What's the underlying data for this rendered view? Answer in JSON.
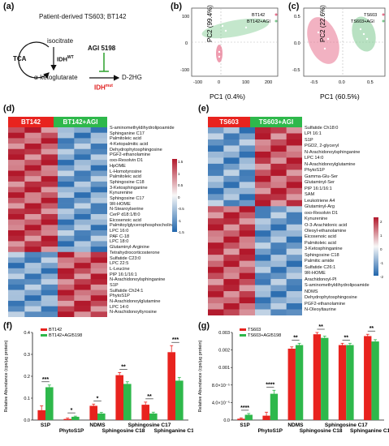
{
  "panel_letters": [
    "(a)",
    "(b)",
    "(c)",
    "(d)",
    "(e)",
    "(f)",
    "(g)"
  ],
  "panel_a": {
    "title": "Patient-derived TS603; BT142",
    "tca": "TCA",
    "isocitrate": "isocitrate",
    "idh_wt": "IDH",
    "idh_wt_sup": "WT",
    "inhibitor": "AGI 5198",
    "akg": "α-ketoglutarate",
    "product": "D-2HG",
    "idh_mut": "IDH",
    "idh_mut_sup": "mut",
    "colors": {
      "inhibitor": "#111111",
      "mutant": "#e02020",
      "inhibit_line": "#2ca02c"
    }
  },
  "panel_b": {
    "xlabel": "PC1 (0.4%)",
    "ylabel": "PC2 (99.4%)",
    "xticks": [
      "-100",
      "0",
      "100",
      "200"
    ],
    "yticks": [
      "-100",
      "0",
      "100"
    ],
    "legend": [
      "BT142",
      "BT142+AGI"
    ],
    "colors": [
      "#e8738f",
      "#7dc98f"
    ]
  },
  "panel_c": {
    "xlabel": "PC1 (60.5%)",
    "ylabel": "PC2 (22.6%)",
    "xticks": [
      "-0.5",
      "0.0",
      "0.5"
    ],
    "yticks": [
      "-0.5",
      "0.0",
      "0.5"
    ],
    "legend": [
      "TS603",
      "TS603+AGI"
    ],
    "colors": [
      "#e8738f",
      "#7dc98f"
    ]
  },
  "panel_d": {
    "groups": [
      "BT142",
      "BT142+AGI"
    ],
    "group_colors": [
      "#e8231e",
      "#2eb84b"
    ],
    "colorbar_ticks": [
      "1.5",
      "1",
      "0.5",
      "0",
      "-0.5",
      "-1",
      "-1.5"
    ],
    "metabolites": [
      "S-aminomethyldihydrolipoamide",
      "Sphinganine C17",
      "Palmitoleic acid",
      "4-Ketopalmitic acid",
      "Dehydrophytosphingosine",
      "PGF2-ethanolamine",
      "oxo-Resolvin D1",
      "HpOME",
      "L-Homotyrosine",
      "Palmitoleic acid",
      "Sphingosine C18",
      "3-Ketosphinganine",
      "Kynurenine",
      "Sphingosine C17",
      "9R-HOME",
      "N-Stearoylserine",
      "CerP d18:1/8:0",
      "Eicosenoic acid",
      "Palmitoylglycerophosphocholine",
      "LPC 16:0",
      "PAF C-18",
      "LPC 18:0",
      "Glutaminyl-Arginine",
      "Tetrahydrocorticosterone",
      "Sulfatide C23:0",
      "LPC 22:5",
      "L-Leucine",
      "PIP 16:1/16:1",
      "N-Arachidonoylsphinganine",
      "S1P",
      "Sulfatide Ch24:1",
      "PhytoS1P",
      "N-Arachidonoylglutamine",
      "LPC 14:0",
      "N-Arachidonoyltyrosine"
    ]
  },
  "panel_e": {
    "groups": [
      "TS603",
      "TS603+AGI"
    ],
    "group_colors": [
      "#e8231e",
      "#2eb84b"
    ],
    "colorbar_ticks": [
      "2",
      "1",
      "0",
      "-1",
      "-2"
    ],
    "metabolites": [
      "Sulfatide Ch18:0",
      "LPI 16:1",
      "S1P",
      "PGD2, 2-glyceryl",
      "N-Arachidonoylsphinganine",
      "LPC 14:0",
      "N-Arachidonoylglutamine",
      "PhytoS1P",
      "Gamma-Glu-Ser",
      "Glutaminyl-Ser",
      "PIP 16:1/16:1",
      "SAM",
      "Leukotriene A4",
      "Glutaminyl-Arg",
      "oxo-Resolvin D1",
      "Kynurenine",
      "O-3-Arachidonic acid",
      "Oleoyl-ethanolamine",
      "Eicosenoic acid",
      "Palmitoleic acid",
      "3-Ketosphinganine",
      "Sphingosine C18",
      "Palmitic amide",
      "Sulfatide C26:1",
      "9R-HOME",
      "Arachidonoyl-PI",
      "S-aminomethyldihydrolipoamide",
      "NDMS",
      "Dehydrophytosphingosine",
      "PGF2-ethanolamine",
      "N-Oleoyltaurine"
    ]
  },
  "chart_data": [
    {
      "panel": "f",
      "type": "bar",
      "ylabel": "Relative Abundance (cps/μg protein)",
      "yticks": [
        "0.0",
        "0.1",
        "0.2",
        "0.3",
        "0.4"
      ],
      "ylim": [
        0,
        0.42
      ],
      "categories": [
        "S1P",
        "PhytoS1P",
        "NDMS",
        "Sphingosine C18",
        "Sphingosine C17",
        "Sphinganine C17"
      ],
      "series": [
        {
          "name": "BT142",
          "values": [
            0.045,
            0.005,
            0.065,
            0.205,
            0.07,
            0.31
          ],
          "errors": [
            0.02,
            0.004,
            0.008,
            0.012,
            0.012,
            0.03
          ],
          "color": "#e8231e"
        },
        {
          "name": "BT142+AGI5198",
          "values": [
            0.15,
            0.015,
            0.03,
            0.165,
            0.03,
            0.18
          ],
          "errors": [
            0.01,
            0.003,
            0.005,
            0.01,
            0.006,
            0.015
          ],
          "color": "#2eb84b"
        }
      ],
      "significance": [
        "***",
        "*",
        "*",
        "**",
        "**",
        "***"
      ]
    },
    {
      "panel": "g",
      "type": "bar",
      "ylabel": "Relative Abundance (cps/μg protein)",
      "yticks": [
        "0.0",
        "4.0×10⁻⁵",
        "8.0×10⁻⁵",
        "0.001",
        "0.002",
        "0.003"
      ],
      "categories": [
        "S1P",
        "PhytoS1P",
        "NDMS",
        "Sphingosine C18",
        "Sphingosine C17",
        "Sphinganine C17"
      ],
      "series": [
        {
          "name": "TS603",
          "values": [
            3e-06,
            1e-05,
            0.0021,
            0.0029,
            0.0023,
            0.0028
          ],
          "errors": [
            2e-06,
            8e-06,
            0.0001,
            0.0002,
            0.0001,
            0.0001
          ],
          "color": "#e8231e"
        },
        {
          "name": "TS603+AGI5198",
          "values": [
            1.2e-05,
            6e-05,
            0.0023,
            0.0027,
            0.0023,
            0.0025
          ],
          "errors": [
            3e-06,
            8e-06,
            0.0001,
            0.0001,
            0.0001,
            0.0001
          ],
          "color": "#2eb84b"
        }
      ],
      "significance": [
        "****",
        "****",
        "**",
        "**",
        "**",
        "**"
      ]
    }
  ]
}
